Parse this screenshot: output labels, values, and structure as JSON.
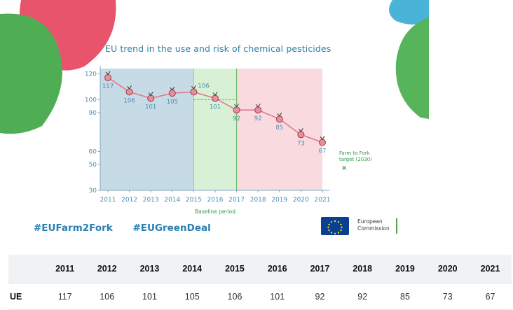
{
  "page": {
    "hashtags": [
      "#EUFarm2Fork",
      "#EUGreenDeal"
    ],
    "logo": {
      "line1": "European",
      "line2": "Commission"
    }
  },
  "chart_data": {
    "type": "line",
    "title": "EU trend in the use and risk of chemical pesticides",
    "xlabel": "",
    "ylabel": "",
    "x": [
      "2011",
      "2012",
      "2013",
      "2014",
      "2015",
      "2016",
      "2017",
      "2018",
      "2019",
      "2020",
      "2021"
    ],
    "values": [
      117,
      106,
      101,
      105,
      106,
      101,
      92,
      92,
      85,
      73,
      67
    ],
    "yticks": [
      30,
      50,
      60,
      90,
      100,
      120
    ],
    "ylim": [
      30,
      124
    ],
    "grid": false,
    "annotations": {
      "baseline_label": "Baseline period",
      "target_label_line1": "Farm to Fork",
      "target_label_line2": "target (2030)",
      "target_marker": "×"
    },
    "colors": {
      "line": "#e07b8a",
      "marker": "#e6909c",
      "band_blue": "#c7dbe7",
      "band_green": "#d8f0d6",
      "band_pink": "#f8dadf",
      "text": "#4a8fb0",
      "target_text": "#2f9a4a"
    }
  },
  "table": {
    "headers": [
      "",
      "2011",
      "2012",
      "2013",
      "2014",
      "2015",
      "2016",
      "2017",
      "2018",
      "2019",
      "2020",
      "2021"
    ],
    "rows": [
      {
        "label": "UE",
        "values": [
          "117",
          "106",
          "101",
          "105",
          "106",
          "101",
          "92",
          "92",
          "85",
          "73",
          "67"
        ]
      }
    ]
  }
}
